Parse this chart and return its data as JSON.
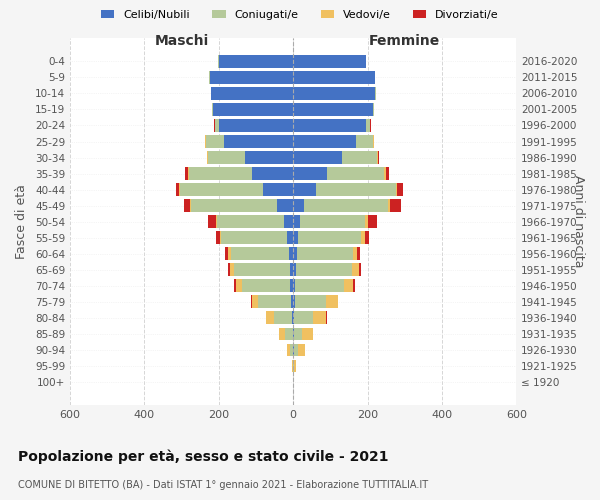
{
  "age_groups": [
    "100+",
    "95-99",
    "90-94",
    "85-89",
    "80-84",
    "75-79",
    "70-74",
    "65-69",
    "60-64",
    "55-59",
    "50-54",
    "45-49",
    "40-44",
    "35-39",
    "30-34",
    "25-29",
    "20-24",
    "15-19",
    "10-14",
    "5-9",
    "0-4"
  ],
  "birth_years": [
    "≤ 1920",
    "1921-1925",
    "1926-1930",
    "1931-1935",
    "1936-1940",
    "1941-1945",
    "1946-1950",
    "1951-1955",
    "1956-1960",
    "1961-1965",
    "1966-1970",
    "1971-1975",
    "1976-1980",
    "1981-1985",
    "1986-1990",
    "1991-1995",
    "1996-2000",
    "2001-2005",
    "2006-2010",
    "2011-2015",
    "2016-2020"
  ],
  "colors": {
    "celibe": "#4472c4",
    "coniugato": "#b5c99a",
    "vedovo": "#f0c060",
    "divorziato": "#cc2222"
  },
  "males": {
    "celibe": [
      0,
      0,
      0,
      2,
      3,
      5,
      8,
      10,
      12,
      18,
      25,
      45,
      80,
      110,
      130,
      185,
      200,
      215,
      220,
      225,
      200
    ],
    "coniugato": [
      0,
      2,
      8,
      20,
      50,
      90,
      130,
      150,
      155,
      175,
      180,
      230,
      225,
      170,
      100,
      50,
      10,
      3,
      2,
      1,
      1
    ],
    "vedovo": [
      0,
      2,
      8,
      15,
      20,
      15,
      15,
      10,
      8,
      5,
      3,
      3,
      3,
      2,
      1,
      1,
      1,
      0,
      0,
      0,
      0
    ],
    "divorziato": [
      0,
      0,
      0,
      0,
      0,
      3,
      5,
      5,
      8,
      10,
      20,
      15,
      8,
      10,
      2,
      1,
      1,
      0,
      0,
      0,
      0
    ]
  },
  "females": {
    "nubile": [
      0,
      0,
      2,
      2,
      3,
      4,
      6,
      8,
      10,
      12,
      18,
      30,
      60,
      90,
      130,
      170,
      195,
      215,
      220,
      220,
      195
    ],
    "coniugata": [
      0,
      3,
      12,
      22,
      50,
      85,
      130,
      150,
      150,
      170,
      175,
      225,
      215,
      155,
      95,
      45,
      10,
      3,
      2,
      1,
      0
    ],
    "vedova": [
      0,
      5,
      18,
      30,
      35,
      30,
      25,
      18,
      12,
      10,
      8,
      5,
      5,
      3,
      2,
      1,
      1,
      0,
      0,
      0,
      0
    ],
    "divorziata": [
      0,
      0,
      0,
      0,
      2,
      2,
      5,
      5,
      8,
      12,
      25,
      30,
      15,
      10,
      3,
      2,
      2,
      0,
      0,
      0,
      0
    ]
  },
  "title": "Popolazione per età, sesso e stato civile - 2021",
  "subtitle": "COMUNE DI BITETTO (BA) - Dati ISTAT 1° gennaio 2021 - Elaborazione TUTTITALIA.IT",
  "xlabel_left": "Maschi",
  "xlabel_right": "Femmine",
  "ylabel_left": "Fasce di età",
  "ylabel_right": "Anni di nascita",
  "xlim": 600,
  "bg_color": "#f5f5f5",
  "plot_bg": "#ffffff",
  "legend_labels": [
    "Celibi/Nubili",
    "Coniugati/e",
    "Vedovi/e",
    "Divorziati/e"
  ]
}
